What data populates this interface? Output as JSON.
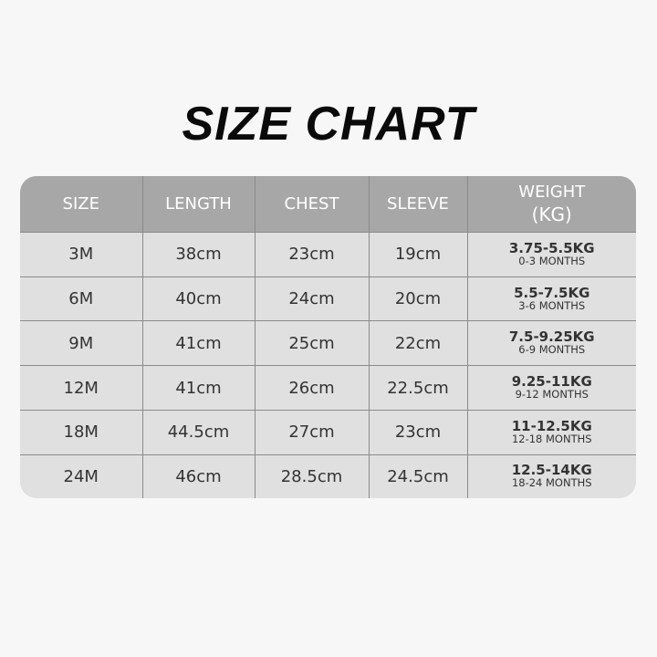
{
  "title": "SIZE CHART",
  "headers": [
    "SIZE",
    "LENGTH",
    "CHEST",
    "SLEEVE",
    "WEIGHT\n(KG)"
  ],
  "header_weight_line1": "WEIGHT",
  "header_weight_line2": "(KG)",
  "rows": [
    {
      "size": "3M",
      "length": "38cm",
      "chest": "23cm",
      "sleeve": "19cm",
      "weight": "3.75-5.5KG",
      "age": "0-3 MONTHS"
    },
    {
      "size": "6M",
      "length": "40cm",
      "chest": "24cm",
      "sleeve": "20cm",
      "weight": "5.5-7.5KG",
      "age": "3-6 MONTHS"
    },
    {
      "size": "9M",
      "length": "41cm",
      "chest": "25cm",
      "sleeve": "22cm",
      "weight": "7.5-9.25KG",
      "age": "6-9 MONTHS"
    },
    {
      "size": "12M",
      "length": "41cm",
      "chest": "26cm",
      "sleeve": "22.5cm",
      "weight": "9.25-11KG",
      "age": "9-12 MONTHS"
    },
    {
      "size": "18M",
      "length": "44.5cm",
      "chest": "27cm",
      "sleeve": "23cm",
      "weight": "11-12.5KG",
      "age": "12-18 MONTHS"
    },
    {
      "size": "24M",
      "length": "46cm",
      "chest": "28.5cm",
      "sleeve": "24.5cm",
      "weight": "12.5-14KG",
      "age": "18-24 MONTHS"
    }
  ],
  "colors": {
    "background": "#f7f7f7",
    "header": "#a7a7a7",
    "body": "#e0e0e0",
    "grid": "#8a8a8a"
  }
}
